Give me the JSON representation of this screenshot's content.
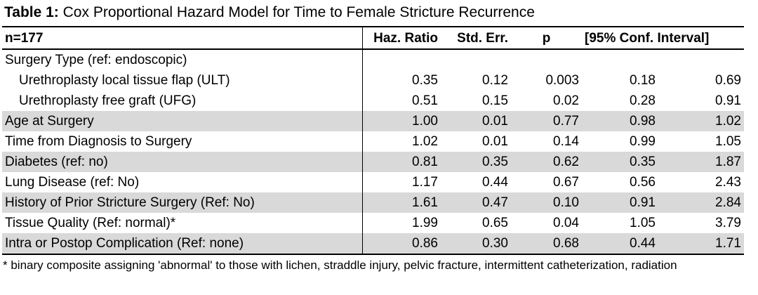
{
  "title": {
    "label": "Table 1:",
    "text": "Cox Proportional Hazard Model for Time to Female Stricture Recurrence"
  },
  "header": {
    "n": "n=177",
    "haz_ratio": "Haz. Ratio",
    "std_err": "Std. Err.",
    "p": "p",
    "ci": "[95% Conf. Interval]"
  },
  "rows": [
    {
      "label": "Surgery Type (ref: endoscopic)",
      "hr": "",
      "se": "",
      "p": "",
      "lo": "",
      "hi": ""
    },
    {
      "label": "Urethroplasty local tissue flap (ULT)",
      "hr": "0.35",
      "se": "0.12",
      "p": "0.003",
      "lo": "0.18",
      "hi": "0.69"
    },
    {
      "label": "Urethroplasty free graft (UFG)",
      "hr": "0.51",
      "se": "0.15",
      "p": "0.02",
      "lo": "0.28",
      "hi": "0.91"
    },
    {
      "label": "Age at Surgery",
      "hr": "1.00",
      "se": "0.01",
      "p": "0.77",
      "lo": "0.98",
      "hi": "1.02"
    },
    {
      "label": "Time from Diagnosis to Surgery",
      "hr": "1.02",
      "se": "0.01",
      "p": "0.14",
      "lo": "0.99",
      "hi": "1.05"
    },
    {
      "label": "Diabetes (ref: no)",
      "hr": "0.81",
      "se": "0.35",
      "p": "0.62",
      "lo": "0.35",
      "hi": "1.87"
    },
    {
      "label": "Lung Disease (ref: No)",
      "hr": "1.17",
      "se": "0.44",
      "p": "0.67",
      "lo": "0.56",
      "hi": "2.43"
    },
    {
      "label": "History of Prior Stricture Surgery (Ref: No)",
      "hr": "1.61",
      "se": "0.47",
      "p": "0.10",
      "lo": "0.91",
      "hi": "2.84"
    },
    {
      "label": "Tissue Quality (Ref: normal)*",
      "hr": "1.99",
      "se": "0.65",
      "p": "0.04",
      "lo": "1.05",
      "hi": "3.79"
    },
    {
      "label": "Intra or Postop Complication (Ref: none)",
      "hr": "0.86",
      "se": "0.30",
      "p": "0.68",
      "lo": "0.44",
      "hi": "1.71"
    }
  ],
  "footnote": "* binary composite assigning 'abnormal' to those with lichen, straddle injury, pelvic fracture, intermittent catheterization, radiation",
  "colors": {
    "shade": "#d9d9d9",
    "rule": "#000000"
  }
}
